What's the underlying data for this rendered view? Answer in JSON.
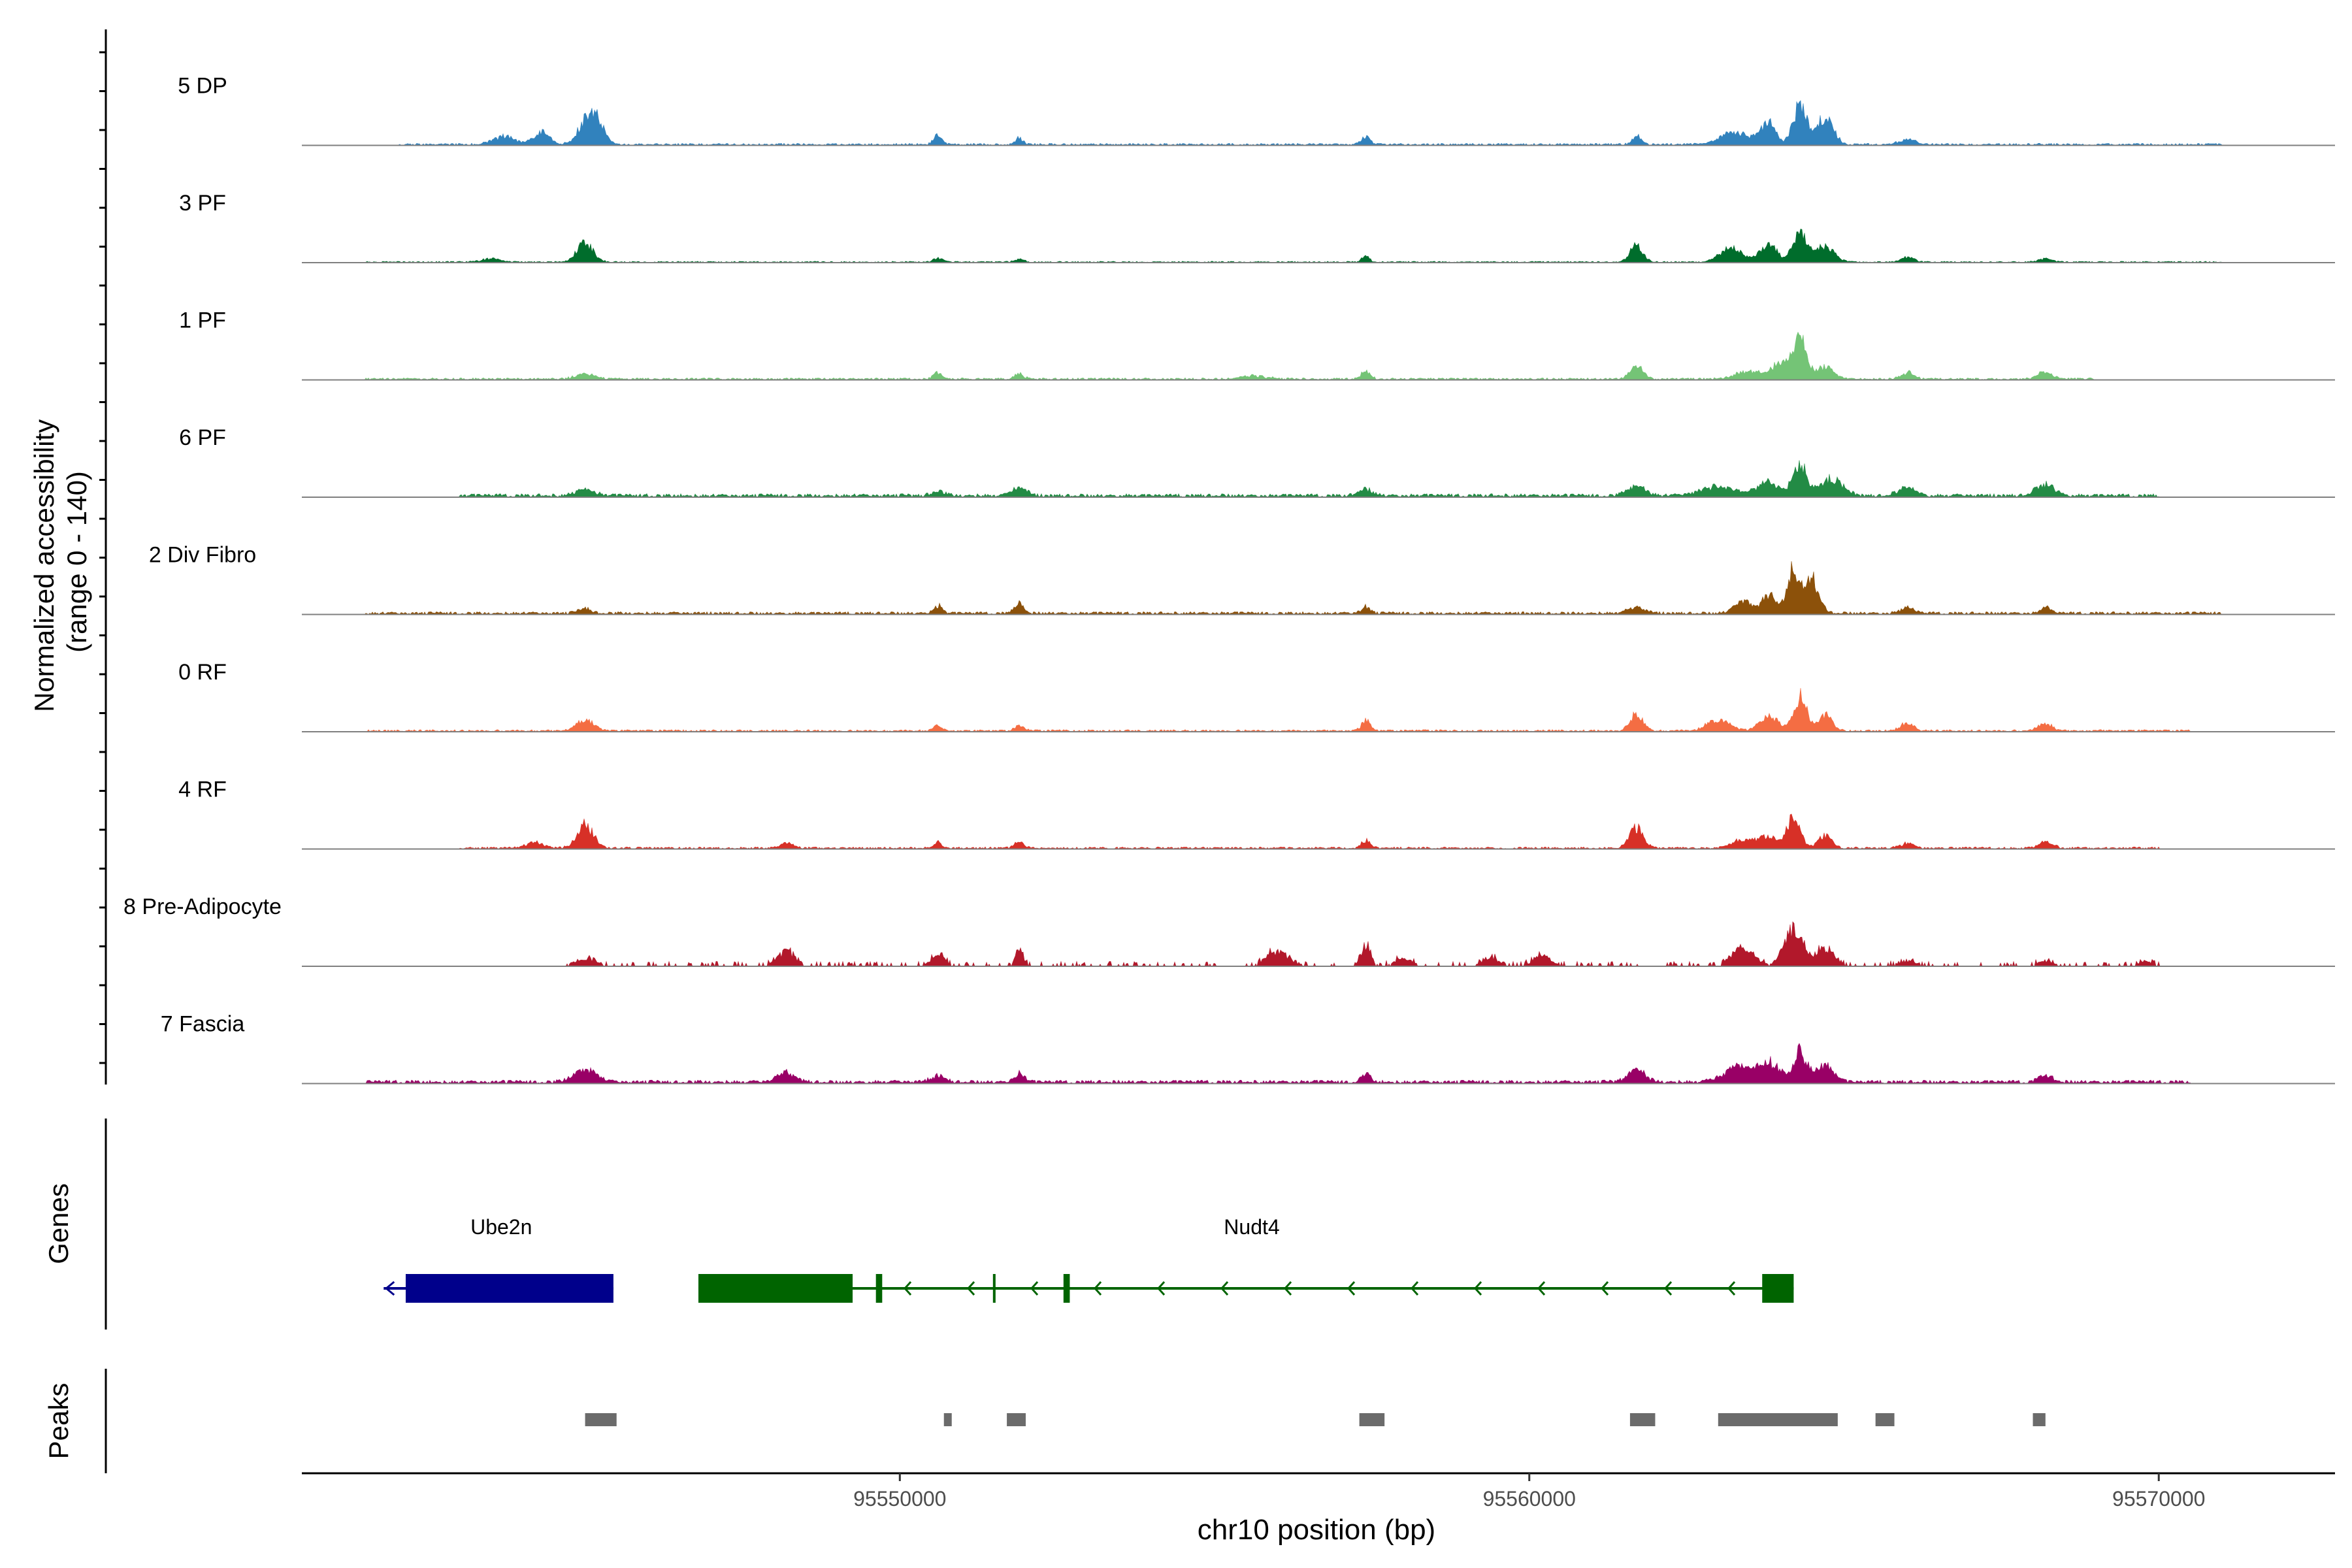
{
  "chart_data": {
    "type": "area",
    "title": "",
    "xlabel": "chr10 position (bp)",
    "ylabel": "Normalized accessibility\n(range 0 - 140)",
    "ylabel_lines": [
      "Normalized accessibility",
      "(range 0 - 140)"
    ],
    "ylim": [
      0,
      140
    ],
    "xlim": [
      95540500,
      95572800
    ],
    "x_ticks": [
      95550000,
      95560000,
      95570000
    ],
    "x_tick_labels": [
      "95550000",
      "95560000",
      "95570000"
    ],
    "section_labels": {
      "genes": "Genes",
      "peaks": "Peaks"
    },
    "tracks": [
      {
        "name": "5 DP",
        "color": "#3182bd",
        "peaks": [
          [
            95543700,
            14,
            250
          ],
          [
            95544300,
            22,
            180
          ],
          [
            95545000,
            40,
            180
          ],
          [
            95545200,
            44,
            150
          ],
          [
            95550600,
            16,
            90
          ],
          [
            95551900,
            12,
            80
          ],
          [
            95557400,
            14,
            100
          ],
          [
            95561700,
            16,
            100
          ],
          [
            95563300,
            22,
            350
          ],
          [
            95563800,
            40,
            150
          ],
          [
            95564300,
            75,
            150
          ],
          [
            95564700,
            50,
            180
          ],
          [
            95566000,
            10,
            180
          ]
        ],
        "noise": [
          95542000,
          95571000,
          3
        ],
        "seed": 11
      },
      {
        "name": "3 PF",
        "color": "#006d2c",
        "peaks": [
          [
            95543500,
            6,
            200
          ],
          [
            95545000,
            35,
            180
          ],
          [
            95550600,
            8,
            100
          ],
          [
            95551900,
            6,
            100
          ],
          [
            95557400,
            12,
            80
          ],
          [
            95561700,
            28,
            150
          ],
          [
            95563200,
            25,
            250
          ],
          [
            95563800,
            32,
            200
          ],
          [
            95564300,
            60,
            150
          ],
          [
            95564700,
            30,
            200
          ],
          [
            95566000,
            9,
            150
          ],
          [
            95568200,
            6,
            150
          ]
        ],
        "noise": [
          95541500,
          95571000,
          2
        ],
        "seed": 23
      },
      {
        "name": "1 PF",
        "color": "#74c476",
        "peaks": [
          [
            95545000,
            10,
            200
          ],
          [
            95550600,
            12,
            100
          ],
          [
            95551900,
            10,
            100
          ],
          [
            95555600,
            6,
            300
          ],
          [
            95557400,
            15,
            100
          ],
          [
            95561700,
            22,
            150
          ],
          [
            95563500,
            14,
            300
          ],
          [
            95564000,
            30,
            200
          ],
          [
            95564300,
            68,
            150
          ],
          [
            95564700,
            22,
            200
          ],
          [
            95566000,
            12,
            150
          ],
          [
            95568200,
            15,
            150
          ]
        ],
        "noise": [
          95541500,
          95569000,
          3
        ],
        "seed": 37
      },
      {
        "name": "6 PF",
        "color": "#238b45",
        "peaks": [
          [
            95545000,
            12,
            200
          ],
          [
            95550600,
            8,
            150
          ],
          [
            95551900,
            16,
            150
          ],
          [
            95557400,
            12,
            150
          ],
          [
            95561700,
            20,
            200
          ],
          [
            95563000,
            16,
            400
          ],
          [
            95563800,
            24,
            250
          ],
          [
            95564300,
            58,
            150
          ],
          [
            95564800,
            30,
            250
          ],
          [
            95566000,
            14,
            200
          ],
          [
            95568200,
            22,
            200
          ]
        ],
        "noise": [
          95543000,
          95570000,
          5
        ],
        "seed": 41
      },
      {
        "name": "2 Div Fibro",
        "color": "#8c510a",
        "peaks": [
          [
            95545000,
            8,
            150
          ],
          [
            95550600,
            14,
            100
          ],
          [
            95551900,
            18,
            100
          ],
          [
            95557400,
            12,
            100
          ],
          [
            95561700,
            10,
            200
          ],
          [
            95563400,
            22,
            200
          ],
          [
            95563800,
            32,
            150
          ],
          [
            95564200,
            80,
            150
          ],
          [
            95564500,
            60,
            150
          ],
          [
            95566000,
            10,
            150
          ],
          [
            95568200,
            12,
            100
          ]
        ],
        "noise": [
          95541500,
          95571000,
          4
        ],
        "seed": 53
      },
      {
        "name": "0 RF",
        "color": "#f46d43",
        "peaks": [
          [
            95545000,
            18,
            200
          ],
          [
            95550600,
            8,
            100
          ],
          [
            95551900,
            10,
            100
          ],
          [
            95557400,
            18,
            100
          ],
          [
            95561700,
            28,
            150
          ],
          [
            95563000,
            20,
            250
          ],
          [
            95563800,
            28,
            200
          ],
          [
            95564300,
            60,
            150
          ],
          [
            95564700,
            32,
            150
          ],
          [
            95566000,
            14,
            150
          ],
          [
            95568200,
            14,
            150
          ]
        ],
        "noise": [
          95541500,
          95570500,
          3
        ],
        "seed": 67
      },
      {
        "name": "4 RF",
        "color": "#d73027",
        "peaks": [
          [
            95544200,
            10,
            200
          ],
          [
            95545000,
            42,
            180
          ],
          [
            95548200,
            10,
            150
          ],
          [
            95550600,
            10,
            100
          ],
          [
            95551900,
            12,
            100
          ],
          [
            95557400,
            14,
            100
          ],
          [
            95561700,
            38,
            150
          ],
          [
            95563400,
            16,
            250
          ],
          [
            95563800,
            20,
            200
          ],
          [
            95564200,
            58,
            150
          ],
          [
            95564700,
            22,
            150
          ],
          [
            95566000,
            8,
            150
          ],
          [
            95568200,
            12,
            150
          ]
        ],
        "noise": [
          95543000,
          95570000,
          3
        ],
        "seed": 79
      },
      {
        "name": "8 Pre-Adipocyte",
        "color": "#b2182b",
        "peaks": [
          [
            95545000,
            14,
            250
          ],
          [
            95548200,
            26,
            200
          ],
          [
            95550600,
            20,
            150
          ],
          [
            95551900,
            38,
            80
          ],
          [
            95556000,
            26,
            250
          ],
          [
            95557400,
            38,
            100
          ],
          [
            95558000,
            14,
            200
          ],
          [
            95559400,
            14,
            200
          ],
          [
            95560200,
            18,
            200
          ],
          [
            95563400,
            34,
            250
          ],
          [
            95564200,
            70,
            200
          ],
          [
            95564700,
            30,
            200
          ],
          [
            95566000,
            10,
            200
          ],
          [
            95568200,
            9,
            200
          ],
          [
            95569800,
            9,
            150
          ]
        ],
        "noise": [
          95545000,
          95570000,
          7
        ],
        "sparse": true,
        "seed": 97
      },
      {
        "name": "7 Fascia",
        "color": "#990066",
        "peaks": [
          [
            95545000,
            24,
            250
          ],
          [
            95548200,
            18,
            200
          ],
          [
            95550600,
            12,
            150
          ],
          [
            95551900,
            16,
            120
          ],
          [
            95557400,
            16,
            100
          ],
          [
            95561700,
            22,
            200
          ],
          [
            95563300,
            28,
            300
          ],
          [
            95563800,
            36,
            250
          ],
          [
            95564300,
            55,
            150
          ],
          [
            95564700,
            30,
            200
          ],
          [
            95568200,
            14,
            150
          ]
        ],
        "noise": [
          95541500,
          95570500,
          5
        ],
        "seed": 113
      }
    ],
    "genes": [
      {
        "name": "Ube2n",
        "color": "#00008b",
        "strand": "-",
        "start": 95541800,
        "end": 95545450,
        "exons": [
          [
            95542150,
            95545450
          ]
        ]
      },
      {
        "name": "Nudt4",
        "color": "#006400",
        "strand": "-",
        "start": 95546800,
        "end": 95564200,
        "exons": [
          [
            95546800,
            95549250
          ],
          [
            95549620,
            95549720
          ],
          [
            95552600,
            95552700
          ],
          [
            95563700,
            95564200
          ]
        ],
        "marks": [
          95551500
        ]
      }
    ],
    "peaks_regions": [
      [
        95545000,
        95545500
      ],
      [
        95550700,
        95550800
      ],
      [
        95551700,
        95552000
      ],
      [
        95557300,
        95557700
      ],
      [
        95561600,
        95562000
      ],
      [
        95563000,
        95564900
      ],
      [
        95565500,
        95565800
      ],
      [
        95568000,
        95568200
      ]
    ]
  }
}
